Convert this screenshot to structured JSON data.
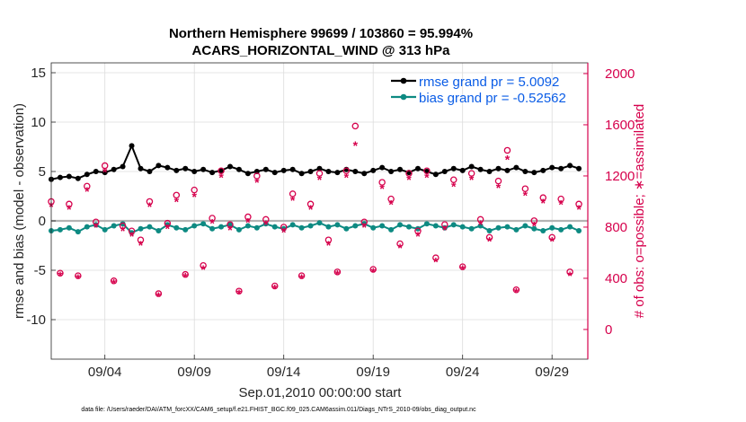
{
  "chart_data": {
    "type": "line",
    "title": "Northern Hemisphere 99699 / 103860 = 95.994%",
    "subtitle": "ACARS_HORIZONTAL_WIND @ 313 hPa",
    "xlabel": "Sep.01,2010 00:00:00 start",
    "ylabel": "rmse and bias (model - observation)",
    "ylabel_right": "# of obs: o=possible; ∗=assimilated",
    "xlim": [
      1,
      31
    ],
    "ylim": [
      -14,
      16
    ],
    "ylim_right": [
      -232,
      2084
    ],
    "x_ticks": [
      4,
      9,
      14,
      19,
      24,
      29
    ],
    "x_tick_labels": [
      "09/04",
      "09/09",
      "09/14",
      "09/19",
      "09/24",
      "09/29"
    ],
    "y_ticks": [
      15,
      10,
      5,
      0,
      -5,
      -10
    ],
    "y_tick_labels": [
      "15",
      "10",
      "5",
      "0",
      "-5",
      "-10"
    ],
    "y_right_ticks": [
      2000,
      1600,
      1200,
      800,
      400,
      0
    ],
    "y_right_tick_labels": [
      "2000",
      "1600",
      "1200",
      "800",
      "400",
      "0"
    ],
    "grid": true,
    "legend_position": "top-right",
    "series": [
      {
        "name": "rmse grand pr = 5.0092",
        "color": "#000000",
        "axis": "left",
        "x": [
          1.0,
          1.5,
          2.0,
          2.5,
          3.0,
          3.5,
          4.0,
          4.5,
          5.0,
          5.5,
          6.0,
          6.5,
          7.0,
          7.5,
          8.0,
          8.5,
          9.0,
          9.5,
          10.0,
          10.5,
          11.0,
          11.5,
          12.0,
          12.5,
          13.0,
          13.5,
          14.0,
          14.5,
          15.0,
          15.5,
          16.0,
          16.5,
          17.0,
          17.5,
          18.0,
          18.5,
          19.0,
          19.5,
          20.0,
          20.5,
          21.0,
          21.5,
          22.0,
          22.5,
          23.0,
          23.5,
          24.0,
          24.5,
          25.0,
          25.5,
          26.0,
          26.5,
          27.0,
          27.5,
          28.0,
          28.5,
          29.0,
          29.5,
          30.0,
          30.5
        ],
        "values": [
          4.2,
          4.4,
          4.5,
          4.3,
          4.7,
          5.0,
          4.9,
          5.2,
          5.5,
          7.6,
          5.3,
          5.0,
          5.6,
          5.4,
          5.1,
          5.3,
          5.0,
          5.2,
          4.9,
          5.1,
          5.5,
          5.2,
          4.8,
          5.0,
          5.2,
          4.9,
          5.1,
          5.2,
          4.8,
          5.0,
          5.3,
          5.0,
          4.9,
          5.2,
          5.0,
          4.8,
          5.1,
          5.4,
          5.0,
          5.2,
          4.9,
          5.3,
          5.0,
          4.7,
          5.0,
          5.3,
          5.1,
          5.5,
          5.2,
          5.0,
          5.3,
          5.1,
          5.4,
          5.0,
          4.9,
          5.1,
          5.4,
          5.3,
          5.6,
          5.3
        ]
      },
      {
        "name": "bias grand pr = -0.52562",
        "color": "#0d8a82",
        "axis": "left",
        "x": [
          1.0,
          1.5,
          2.0,
          2.5,
          3.0,
          3.5,
          4.0,
          4.5,
          5.0,
          5.5,
          6.0,
          6.5,
          7.0,
          7.5,
          8.0,
          8.5,
          9.0,
          9.5,
          10.0,
          10.5,
          11.0,
          11.5,
          12.0,
          12.5,
          13.0,
          13.5,
          14.0,
          14.5,
          15.0,
          15.5,
          16.0,
          16.5,
          17.0,
          17.5,
          18.0,
          18.5,
          19.0,
          19.5,
          20.0,
          20.5,
          21.0,
          21.5,
          22.0,
          22.5,
          23.0,
          23.5,
          24.0,
          24.5,
          25.0,
          25.5,
          26.0,
          26.5,
          27.0,
          27.5,
          28.0,
          28.5,
          29.0,
          29.5,
          30.0,
          30.5
        ],
        "values": [
          -1.0,
          -0.9,
          -0.7,
          -1.1,
          -0.6,
          -0.4,
          -0.9,
          -0.5,
          -0.3,
          -1.2,
          -0.8,
          -0.6,
          -1.0,
          -0.4,
          -0.7,
          -0.9,
          -0.5,
          -0.3,
          -0.8,
          -0.6,
          -0.4,
          -0.9,
          -0.5,
          -0.7,
          -0.3,
          -0.6,
          -0.8,
          -0.4,
          -0.7,
          -0.5,
          -0.2,
          -0.6,
          -0.4,
          -0.8,
          -0.5,
          -0.3,
          -0.7,
          -0.5,
          -0.9,
          -0.4,
          -0.6,
          -0.8,
          -0.3,
          -0.5,
          -0.7,
          -0.4,
          -0.6,
          -0.8,
          -0.5,
          -1.0,
          -0.7,
          -0.6,
          -0.9,
          -0.5,
          -0.8,
          -1.0,
          -0.7,
          -0.9,
          -0.6,
          -1.0
        ]
      },
      {
        "name": "possible",
        "marker": "o",
        "color": "#d6004c",
        "axis": "right",
        "x": [
          1.0,
          1.5,
          2.0,
          2.5,
          3.0,
          3.5,
          4.0,
          4.5,
          5.0,
          5.5,
          6.0,
          6.5,
          7.0,
          7.5,
          8.0,
          8.5,
          9.0,
          9.5,
          10.0,
          10.5,
          11.0,
          11.5,
          12.0,
          12.5,
          13.0,
          13.5,
          14.0,
          14.5,
          15.0,
          15.5,
          16.0,
          16.5,
          17.0,
          17.5,
          18.0,
          18.5,
          19.0,
          19.5,
          20.0,
          20.5,
          21.0,
          21.5,
          22.0,
          22.5,
          23.0,
          23.5,
          24.0,
          24.5,
          25.0,
          25.5,
          26.0,
          26.5,
          27.0,
          27.5,
          28.0,
          28.5,
          29.0,
          29.5,
          30.0,
          30.5
        ],
        "values": [
          1000,
          440,
          980,
          420,
          1120,
          840,
          1280,
          380,
          810,
          770,
          700,
          1000,
          280,
          830,
          1050,
          430,
          1090,
          500,
          870,
          1240,
          820,
          300,
          880,
          1200,
          860,
          340,
          800,
          1060,
          420,
          980,
          1220,
          700,
          450,
          1240,
          1590,
          840,
          470,
          1150,
          1020,
          670,
          1220,
          770,
          1240,
          560,
          820,
          1170,
          490,
          1220,
          860,
          720,
          1160,
          1400,
          310,
          1100,
          850,
          1030,
          720,
          1020,
          450,
          980
        ]
      },
      {
        "name": "assimilated",
        "marker": "*",
        "color": "#d6004c",
        "axis": "right",
        "x": [
          1.0,
          1.5,
          2.0,
          2.5,
          3.0,
          3.5,
          4.0,
          4.5,
          5.0,
          5.5,
          6.0,
          6.5,
          7.0,
          7.5,
          8.0,
          8.5,
          9.0,
          9.5,
          10.0,
          10.5,
          11.0,
          11.5,
          12.0,
          12.5,
          13.0,
          13.5,
          14.0,
          14.5,
          15.0,
          15.5,
          16.0,
          16.5,
          17.0,
          17.5,
          18.0,
          18.5,
          19.0,
          19.5,
          20.0,
          20.5,
          21.0,
          21.5,
          22.0,
          22.5,
          23.0,
          23.5,
          24.0,
          24.5,
          25.0,
          25.5,
          26.0,
          26.5,
          27.0,
          27.5,
          28.0,
          28.5,
          29.0,
          29.5,
          30.0,
          30.5
        ],
        "values": [
          960,
          420,
          940,
          400,
          1080,
          800,
          1230,
          360,
          770,
          730,
          660,
          960,
          260,
          790,
          1000,
          410,
          1040,
          470,
          830,
          1190,
          780,
          280,
          840,
          1150,
          820,
          320,
          760,
          1010,
          400,
          940,
          1170,
          660,
          430,
          1190,
          1440,
          800,
          450,
          1100,
          980,
          640,
          1170,
          730,
          1190,
          530,
          780,
          1120,
          470,
          1170,
          820,
          690,
          1110,
          1330,
          290,
          1050,
          810,
          990,
          690,
          980,
          420,
          940
        ]
      }
    ],
    "legend": [
      "rmse grand pr = 5.0092",
      "bias grand pr = -0.52562"
    ],
    "footnote": "data file: /Users/raeder/DAI/ATM_forcXX/CAM6_setup/f.e21.FHIST_BGC.f09_025.CAM6assim.011/Diags_NTrS_2010-09/obs_diag_output.nc"
  }
}
